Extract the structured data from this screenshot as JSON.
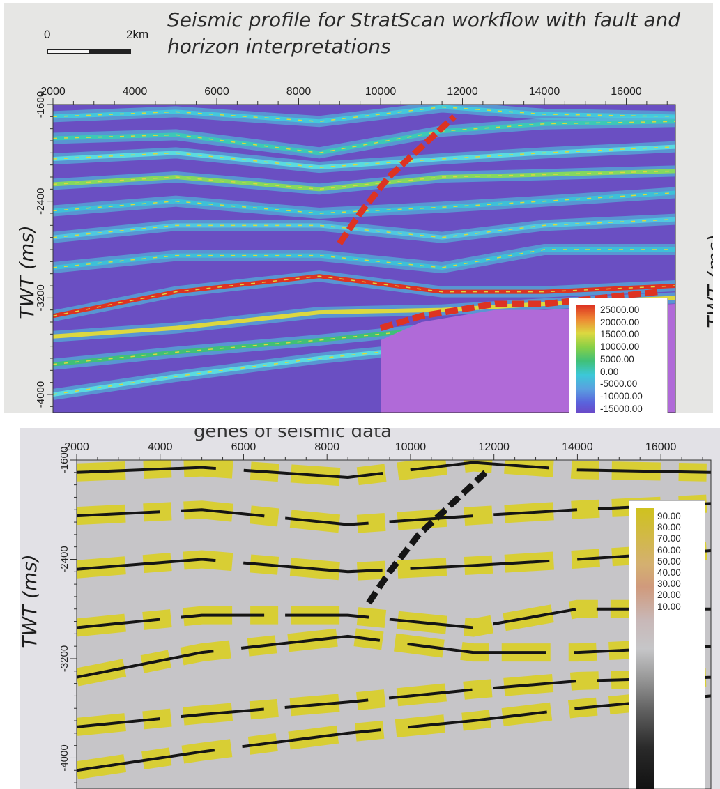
{
  "chart_data": [
    {
      "type": "heatmap",
      "title": "Seismic profile for StratScan workflow with fault and horizon interpretations",
      "title_lines": [
        "Seismic profile for StratScan workflow with fault and",
        "horizon interpretations"
      ],
      "scale_bar": {
        "start_label": "0",
        "end_label": "2km"
      },
      "ylabel": "TWT (ms)",
      "ylabel_right": "TWT (ms)",
      "x_ticks": [
        2000,
        4000,
        6000,
        8000,
        10000,
        12000,
        14000,
        16000
      ],
      "y_ticks": [
        -1600,
        -2400,
        -3200,
        -4000
      ],
      "xlim": [
        2000,
        17200
      ],
      "ylim": [
        -1600,
        -4150
      ],
      "colorbar": {
        "labels": [
          "25000.00",
          "20000.00",
          "15000.00",
          "10000.00",
          "5000.00",
          "0.00",
          "-5000.00",
          "-10000.00",
          "-15000.00"
        ],
        "colors": [
          "#dd3322",
          "#ee8833",
          "#dcd840",
          "#88d046",
          "#40c078",
          "#3cc8d8",
          "#5aa0e0",
          "#5a62dc",
          "#7040c0"
        ]
      },
      "background_color": "#6a4fc2",
      "horizons": [
        {
          "x": [
            2000,
            5000,
            8500,
            11500,
            14000,
            17200
          ],
          "y": [
            -1700,
            -1660,
            -1740,
            -1620,
            -1680,
            -1700
          ],
          "color": "#44c8dc"
        },
        {
          "x": [
            2000,
            5000,
            8500,
            11500,
            14000,
            17200
          ],
          "y": [
            -1880,
            -1850,
            -2000,
            -1820,
            -1760,
            -1740
          ],
          "color": "#3cc8b8"
        },
        {
          "x": [
            2000,
            5000,
            8500,
            11500,
            14000,
            17200
          ],
          "y": [
            -2050,
            -2000,
            -2120,
            -2050,
            -2000,
            -1950
          ],
          "color": "#5adbe0"
        },
        {
          "x": [
            2000,
            5000,
            8500,
            11500,
            14000,
            17200
          ],
          "y": [
            -2260,
            -2200,
            -2300,
            -2200,
            -2180,
            -2150
          ],
          "color": "#84d860"
        },
        {
          "x": [
            2000,
            5000,
            8500,
            11500,
            14000,
            17200
          ],
          "y": [
            -2480,
            -2400,
            -2500,
            -2450,
            -2400,
            -2330
          ],
          "color": "#3ec0d8"
        },
        {
          "x": [
            2000,
            5000,
            8500,
            11500,
            14000,
            17200
          ],
          "y": [
            -2700,
            -2600,
            -2600,
            -2700,
            -2600,
            -2550
          ],
          "color": "#50c8e0"
        },
        {
          "x": [
            2000,
            5000,
            8500,
            11500,
            14000,
            17200
          ],
          "y": [
            -2950,
            -2850,
            -2850,
            -2950,
            -2800,
            -2800
          ],
          "color": "#3ec0d8"
        },
        {
          "x": [
            2000,
            5000,
            8500,
            11500,
            14000,
            17200
          ],
          "y": [
            -3350,
            -3150,
            -3020,
            -3150,
            -3150,
            -3100
          ],
          "color": "#dd3322"
        },
        {
          "x": [
            2000,
            5000,
            8500,
            11500,
            14000,
            17200
          ],
          "y": [
            -3520,
            -3450,
            -3320,
            -3300,
            -3250,
            -3200
          ],
          "color": "#dcd840"
        },
        {
          "x": [
            2000,
            5000,
            8500,
            11500,
            14000,
            17200
          ],
          "y": [
            -3750,
            -3650,
            -3550,
            -3450,
            -3380,
            -3350
          ],
          "color": "#40c078"
        },
        {
          "x": [
            2000,
            5000,
            8500,
            11500,
            14000,
            17200
          ],
          "y": [
            -4000,
            -3850,
            -3700,
            -3600,
            -3500,
            -3450
          ],
          "color": "#5adbe0"
        }
      ],
      "faults": [
        {
          "x": [
            9000,
            9500,
            10200,
            11000,
            11800
          ],
          "y": [
            -2750,
            -2500,
            -2200,
            -1950,
            -1700
          ],
          "color": "#dd3322"
        },
        {
          "x": [
            10000,
            11000,
            12800,
            14000,
            16800
          ],
          "y": [
            -3450,
            -3350,
            -3250,
            -3250,
            -3150
          ],
          "color": "#dd3322"
        }
      ],
      "basement": {
        "x": [
          10000,
          11000,
          12800,
          14000,
          17200
        ],
        "y": [
          -3550,
          -3400,
          -3300,
          -3300,
          -3250
        ],
        "color": "#b06ad8"
      }
    },
    {
      "type": "heatmap",
      "title": "genes of seismic data",
      "ylabel": "TWT (ms)",
      "x_ticks": [
        2000,
        4000,
        6000,
        8000,
        10000,
        12000,
        14000,
        16000
      ],
      "y_ticks": [
        -1600,
        -2400,
        -3200,
        -4000
      ],
      "xlim": [
        2000,
        17200
      ],
      "ylim": [
        -1600,
        -4250
      ],
      "colorbar": {
        "labels": [
          "90.00",
          "80.00",
          "70.00",
          "60.00",
          "50.00",
          "40.00",
          "30.00",
          "20.00",
          "10.00"
        ],
        "colors": [
          "#cfc21e",
          "#d4b070",
          "#d09a7c",
          "#c8b8b8",
          "#c6c6c8",
          "#9a9a9a",
          "#606060",
          "#2a2a2a",
          "#111111"
        ]
      },
      "background_color": "#c6c5c8",
      "highlight_color": "#d9cf2c",
      "edge_color": "#151515",
      "horizons": [
        {
          "x": [
            2000,
            5000,
            8500,
            11500,
            14000,
            17200
          ],
          "y": [
            -1700,
            -1660,
            -1740,
            -1620,
            -1680,
            -1700
          ]
        },
        {
          "x": [
            2000,
            5000,
            8500,
            11500,
            14000,
            17200
          ],
          "y": [
            -2050,
            -2000,
            -2120,
            -2050,
            -2000,
            -1950
          ]
        },
        {
          "x": [
            2000,
            5000,
            8500,
            11500,
            14000,
            17200
          ],
          "y": [
            -2480,
            -2400,
            -2500,
            -2450,
            -2400,
            -2330
          ]
        },
        {
          "x": [
            2000,
            5000,
            8500,
            11500,
            14000,
            17200
          ],
          "y": [
            -2950,
            -2850,
            -2850,
            -2950,
            -2800,
            -2800
          ]
        },
        {
          "x": [
            2000,
            5000,
            8500,
            11500,
            14000,
            17200
          ],
          "y": [
            -3350,
            -3150,
            -3020,
            -3150,
            -3150,
            -3100
          ]
        },
        {
          "x": [
            2000,
            5000,
            8500,
            11500,
            14000,
            17200
          ],
          "y": [
            -3750,
            -3650,
            -3550,
            -3450,
            -3380,
            -3350
          ]
        },
        {
          "x": [
            2000,
            5000,
            8500,
            11500,
            14000,
            17200
          ],
          "y": [
            -4100,
            -3950,
            -3800,
            -3700,
            -3600,
            -3500
          ]
        }
      ],
      "faults": [
        {
          "x": [
            9000,
            9500,
            10200,
            11000,
            11800
          ],
          "y": [
            -2750,
            -2500,
            -2200,
            -1950,
            -1700
          ]
        }
      ]
    }
  ]
}
